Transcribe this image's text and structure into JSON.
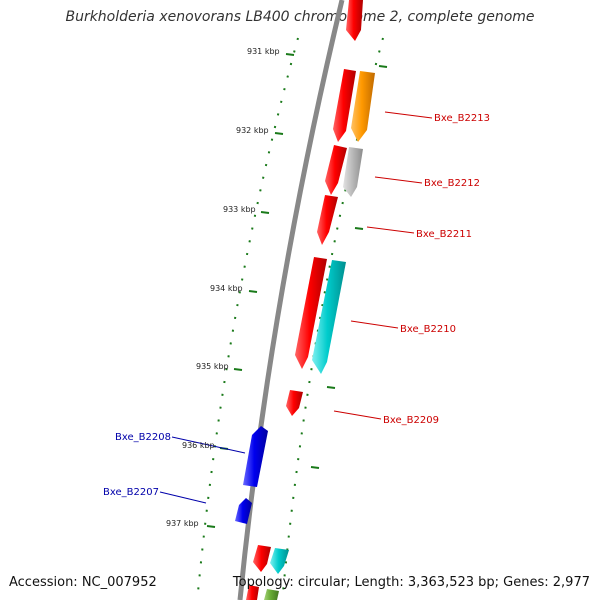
{
  "title": "Burkholderia xenovorans LB400 chromosome 2, complete genome",
  "colors": {
    "backbone": "#888888",
    "tick": "#1a7a1a",
    "forward_gene_label": "#cc0000",
    "reverse_gene_label": "#0000aa",
    "cds_red": "#ff0000",
    "orange": "#ff9900",
    "gray": "#bbbbbb",
    "cyan": "#00cccc",
    "blue": "#0000ee",
    "green": "#66aa33"
  },
  "kbp_ticks": [
    "931 kbp",
    "932 kbp",
    "933 kbp",
    "934 kbp",
    "935 kbp",
    "936 kbp",
    "937 kbp"
  ],
  "gene_labels": [
    {
      "name": "Bxe_B2213",
      "strand": "forward"
    },
    {
      "name": "Bxe_B2212",
      "strand": "forward"
    },
    {
      "name": "Bxe_B2211",
      "strand": "forward"
    },
    {
      "name": "Bxe_B2210",
      "strand": "forward"
    },
    {
      "name": "Bxe_B2209",
      "strand": "forward"
    },
    {
      "name": "Bxe_B2208",
      "strand": "reverse"
    },
    {
      "name": "Bxe_B2207",
      "strand": "reverse"
    }
  ],
  "footer": {
    "accession": "Accession: NC_007952",
    "stats": "Topology: circular; Length: 3,363,523 bp; Genes: 2,977"
  }
}
